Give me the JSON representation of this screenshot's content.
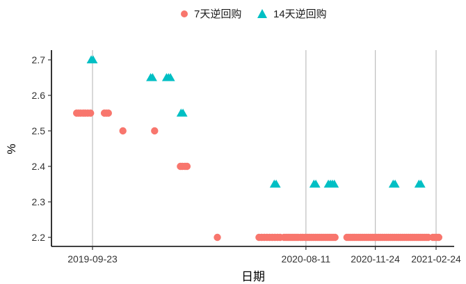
{
  "chart_data": {
    "type": "scatter",
    "title": "",
    "xlabel": "日期",
    "ylabel": "%",
    "x_type": "date",
    "xlim": [
      "2019-08-20",
      "2021-03-05"
    ],
    "ylim": [
      2.17,
      2.72
    ],
    "y_ticks": [
      2.2,
      2.3,
      2.4,
      2.5,
      2.6,
      2.7
    ],
    "y_tick_labels": [
      "2.2",
      "2.3",
      "2.4",
      "2.5",
      "2.6",
      "2.7"
    ],
    "x_ticks": [
      "2019-09-23",
      "2020-08-11",
      "2020-11-24",
      "2021-02-24"
    ],
    "x_tick_labels": [
      "2019-09-23",
      "2020-08-11",
      "2020-11-24",
      "2021-02-24"
    ],
    "vertical_gridlines": true,
    "horizontal_gridlines": false,
    "legend_position": "top",
    "series": [
      {
        "name": "7天逆回购",
        "marker": "circle",
        "color": "#F8766D",
        "points": [
          {
            "x": "2019-08-30",
            "y": 2.55
          },
          {
            "x": "2019-09-02",
            "y": 2.55
          },
          {
            "x": "2019-09-05",
            "y": 2.55
          },
          {
            "x": "2019-09-09",
            "y": 2.55
          },
          {
            "x": "2019-09-12",
            "y": 2.55
          },
          {
            "x": "2019-09-16",
            "y": 2.55
          },
          {
            "x": "2019-09-20",
            "y": 2.55
          },
          {
            "x": "2019-10-11",
            "y": 2.55
          },
          {
            "x": "2019-10-14",
            "y": 2.55
          },
          {
            "x": "2019-10-17",
            "y": 2.55
          },
          {
            "x": "2019-11-08",
            "y": 2.5
          },
          {
            "x": "2019-12-26",
            "y": 2.5
          },
          {
            "x": "2020-02-03",
            "y": 2.4
          },
          {
            "x": "2020-02-06",
            "y": 2.4
          },
          {
            "x": "2020-02-10",
            "y": 2.4
          },
          {
            "x": "2020-02-13",
            "y": 2.4
          },
          {
            "x": "2020-03-30",
            "y": 2.2
          },
          {
            "x": "2020-06-01",
            "y": 2.2
          },
          {
            "x": "2020-06-05",
            "y": 2.2
          },
          {
            "x": "2020-06-09",
            "y": 2.2
          },
          {
            "x": "2020-06-13",
            "y": 2.2
          },
          {
            "x": "2020-06-17",
            "y": 2.2
          },
          {
            "x": "2020-06-21",
            "y": 2.2
          },
          {
            "x": "2020-06-25",
            "y": 2.2
          },
          {
            "x": "2020-06-29",
            "y": 2.2
          },
          {
            "x": "2020-07-03",
            "y": 2.2
          },
          {
            "x": "2020-07-09",
            "y": 2.2
          },
          {
            "x": "2020-07-12",
            "y": 2.2
          },
          {
            "x": "2020-07-15",
            "y": 2.2
          },
          {
            "x": "2020-07-18",
            "y": 2.2
          },
          {
            "x": "2020-07-21",
            "y": 2.2
          },
          {
            "x": "2020-07-24",
            "y": 2.2
          },
          {
            "x": "2020-07-27",
            "y": 2.2
          },
          {
            "x": "2020-07-30",
            "y": 2.2
          },
          {
            "x": "2020-08-03",
            "y": 2.2
          },
          {
            "x": "2020-08-06",
            "y": 2.2
          },
          {
            "x": "2020-08-10",
            "y": 2.2
          },
          {
            "x": "2020-08-13",
            "y": 2.2
          },
          {
            "x": "2020-08-16",
            "y": 2.2
          },
          {
            "x": "2020-08-19",
            "y": 2.2
          },
          {
            "x": "2020-08-22",
            "y": 2.2
          },
          {
            "x": "2020-08-25",
            "y": 2.2
          },
          {
            "x": "2020-08-28",
            "y": 2.2
          },
          {
            "x": "2020-08-31",
            "y": 2.2
          },
          {
            "x": "2020-09-03",
            "y": 2.2
          },
          {
            "x": "2020-09-06",
            "y": 2.2
          },
          {
            "x": "2020-09-09",
            "y": 2.2
          },
          {
            "x": "2020-09-12",
            "y": 2.2
          },
          {
            "x": "2020-09-15",
            "y": 2.2
          },
          {
            "x": "2020-09-18",
            "y": 2.2
          },
          {
            "x": "2020-09-21",
            "y": 2.2
          },
          {
            "x": "2020-09-24",
            "y": 2.2
          },
          {
            "x": "2020-10-12",
            "y": 2.2
          },
          {
            "x": "2020-10-15",
            "y": 2.2
          },
          {
            "x": "2020-10-18",
            "y": 2.2
          },
          {
            "x": "2020-10-21",
            "y": 2.2
          },
          {
            "x": "2020-10-24",
            "y": 2.2
          },
          {
            "x": "2020-10-27",
            "y": 2.2
          },
          {
            "x": "2020-10-30",
            "y": 2.2
          },
          {
            "x": "2020-11-02",
            "y": 2.2
          },
          {
            "x": "2020-11-05",
            "y": 2.2
          },
          {
            "x": "2020-11-08",
            "y": 2.2
          },
          {
            "x": "2020-11-11",
            "y": 2.2
          },
          {
            "x": "2020-11-14",
            "y": 2.2
          },
          {
            "x": "2020-11-17",
            "y": 2.2
          },
          {
            "x": "2020-11-20",
            "y": 2.2
          },
          {
            "x": "2020-11-23",
            "y": 2.2
          },
          {
            "x": "2020-11-26",
            "y": 2.2
          },
          {
            "x": "2020-11-29",
            "y": 2.2
          },
          {
            "x": "2020-12-02",
            "y": 2.2
          },
          {
            "x": "2020-12-05",
            "y": 2.2
          },
          {
            "x": "2020-12-08",
            "y": 2.2
          },
          {
            "x": "2020-12-11",
            "y": 2.2
          },
          {
            "x": "2020-12-14",
            "y": 2.2
          },
          {
            "x": "2020-12-17",
            "y": 2.2
          },
          {
            "x": "2020-12-20",
            "y": 2.2
          },
          {
            "x": "2020-12-23",
            "y": 2.2
          },
          {
            "x": "2020-12-26",
            "y": 2.2
          },
          {
            "x": "2020-12-29",
            "y": 2.2
          },
          {
            "x": "2021-01-01",
            "y": 2.2
          },
          {
            "x": "2021-01-04",
            "y": 2.2
          },
          {
            "x": "2021-01-07",
            "y": 2.2
          },
          {
            "x": "2021-01-10",
            "y": 2.2
          },
          {
            "x": "2021-01-13",
            "y": 2.2
          },
          {
            "x": "2021-01-16",
            "y": 2.2
          },
          {
            "x": "2021-01-19",
            "y": 2.2
          },
          {
            "x": "2021-01-22",
            "y": 2.2
          },
          {
            "x": "2021-01-25",
            "y": 2.2
          },
          {
            "x": "2021-01-28",
            "y": 2.2
          },
          {
            "x": "2021-01-31",
            "y": 2.2
          },
          {
            "x": "2021-02-03",
            "y": 2.2
          },
          {
            "x": "2021-02-06",
            "y": 2.2
          },
          {
            "x": "2021-02-09",
            "y": 2.2
          },
          {
            "x": "2021-02-12",
            "y": 2.2
          },
          {
            "x": "2021-02-19",
            "y": 2.2
          },
          {
            "x": "2021-02-22",
            "y": 2.2
          },
          {
            "x": "2021-02-25",
            "y": 2.2
          },
          {
            "x": "2021-02-28",
            "y": 2.2
          }
        ]
      },
      {
        "name": "14天逆回购",
        "marker": "triangle",
        "color": "#00BFC4",
        "points": [
          {
            "x": "2019-09-21",
            "y": 2.7
          },
          {
            "x": "2019-09-24",
            "y": 2.7
          },
          {
            "x": "2019-12-20",
            "y": 2.65
          },
          {
            "x": "2019-12-23",
            "y": 2.65
          },
          {
            "x": "2020-01-13",
            "y": 2.65
          },
          {
            "x": "2020-01-16",
            "y": 2.65
          },
          {
            "x": "2020-01-19",
            "y": 2.65
          },
          {
            "x": "2020-02-04",
            "y": 2.55
          },
          {
            "x": "2020-02-07",
            "y": 2.55
          },
          {
            "x": "2020-06-24",
            "y": 2.35
          },
          {
            "x": "2020-06-27",
            "y": 2.35
          },
          {
            "x": "2020-08-23",
            "y": 2.35
          },
          {
            "x": "2020-08-26",
            "y": 2.35
          },
          {
            "x": "2020-09-14",
            "y": 2.35
          },
          {
            "x": "2020-09-17",
            "y": 2.35
          },
          {
            "x": "2020-09-20",
            "y": 2.35
          },
          {
            "x": "2020-09-23",
            "y": 2.35
          },
          {
            "x": "2020-12-21",
            "y": 2.35
          },
          {
            "x": "2020-12-24",
            "y": 2.35
          },
          {
            "x": "2021-01-29",
            "y": 2.35
          },
          {
            "x": "2021-02-01",
            "y": 2.35
          }
        ]
      }
    ]
  }
}
